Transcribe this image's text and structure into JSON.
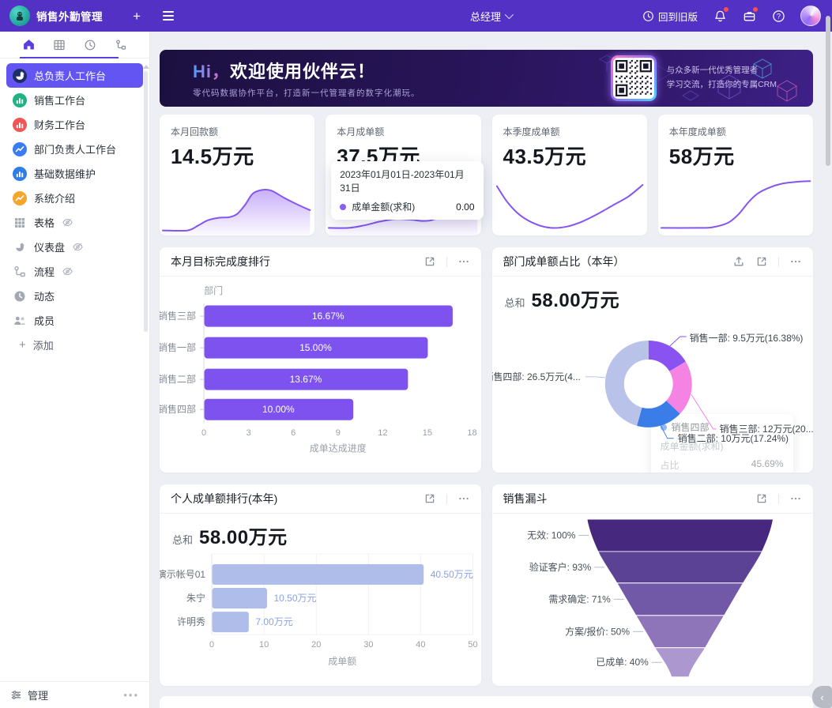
{
  "header": {
    "app_title": "销售外勤管理",
    "role_selector": "总经理",
    "back_to_old_label": "回到旧版"
  },
  "sidebar": {
    "items": [
      {
        "label": "总负责人工作台",
        "icon": "pie-dark",
        "active": true
      },
      {
        "label": "销售工作台",
        "icon": "bars-green"
      },
      {
        "label": "财务工作台",
        "icon": "bars-red"
      },
      {
        "label": "部门负责人工作台",
        "icon": "line-blue"
      },
      {
        "label": "基础数据维护",
        "icon": "bars-blue"
      },
      {
        "label": "系统介绍",
        "icon": "line-orange"
      },
      {
        "label": "表格",
        "icon": "grid-gray",
        "hidden": true
      },
      {
        "label": "仪表盘",
        "icon": "pie-gray",
        "hidden": true
      },
      {
        "label": "流程",
        "icon": "flow-gray",
        "hidden": true
      },
      {
        "label": "动态",
        "icon": "clock-gray"
      },
      {
        "label": "成员",
        "icon": "people-gray"
      }
    ],
    "add_label": "添加",
    "manage_label": "管理"
  },
  "banner": {
    "greeting": "Hi，",
    "title": "欢迎使用伙伴云！",
    "subtitle": "零代码数据协作平台，打造新一代管理者的数字化潮玩。",
    "qr_caption_line1": "与众多新一代优秀管理者",
    "qr_caption_line2": "学习交流，打造你的专属CRM"
  },
  "stat_cards": [
    {
      "label": "本月回款额",
      "value": "14.5万元",
      "spark_type": "area",
      "spark": [
        [
          2,
          92
        ],
        [
          18,
          92
        ],
        [
          25,
          84
        ],
        [
          31,
          76
        ],
        [
          38,
          72
        ],
        [
          45,
          71
        ],
        [
          50,
          66
        ],
        [
          55,
          52
        ],
        [
          60,
          34
        ],
        [
          66,
          28
        ],
        [
          72,
          29
        ],
        [
          80,
          40
        ],
        [
          88,
          50
        ],
        [
          97,
          60
        ]
      ]
    },
    {
      "label": "本月成单额",
      "value": "37.5万元",
      "spark_type": "area",
      "spark": [
        [
          2,
          88
        ],
        [
          15,
          88
        ],
        [
          25,
          84
        ],
        [
          35,
          78
        ],
        [
          45,
          74
        ],
        [
          55,
          75
        ],
        [
          62,
          77
        ],
        [
          68,
          76
        ],
        [
          74,
          70
        ],
        [
          80,
          60
        ],
        [
          85,
          46
        ],
        [
          90,
          32
        ],
        [
          95,
          16
        ],
        [
          98,
          6
        ]
      ],
      "tooltip": {
        "date_range": "2023年01月01日-2023年01月31日",
        "series": "成单金额(求和)",
        "value": "0.00"
      }
    },
    {
      "label": "本季度成单额",
      "value": "43.5万元",
      "spark_type": "line",
      "spark": [
        [
          3,
          22
        ],
        [
          10,
          48
        ],
        [
          18,
          68
        ],
        [
          28,
          82
        ],
        [
          38,
          88
        ],
        [
          48,
          86
        ],
        [
          58,
          78
        ],
        [
          68,
          66
        ],
        [
          78,
          52
        ],
        [
          88,
          38
        ],
        [
          97,
          20
        ]
      ]
    },
    {
      "label": "本年度成单额",
      "value": "58万元",
      "spark_type": "line",
      "spark": [
        [
          2,
          88
        ],
        [
          25,
          88
        ],
        [
          35,
          87
        ],
        [
          45,
          80
        ],
        [
          52,
          66
        ],
        [
          58,
          48
        ],
        [
          64,
          34
        ],
        [
          72,
          24
        ],
        [
          80,
          18
        ],
        [
          90,
          15
        ],
        [
          98,
          14
        ]
      ]
    }
  ],
  "chart_data": [
    {
      "type": "bar",
      "orientation": "horizontal",
      "title": "本月目标完成度排行",
      "header_icons": [
        "expand",
        "more"
      ],
      "categories": [
        "销售三部",
        "销售一部",
        "销售二部",
        "销售四部"
      ],
      "values": [
        16.67,
        15.0,
        13.67,
        10.0
      ],
      "bar_labels": [
        "16.67%",
        "15.00%",
        "13.67%",
        "10.00%"
      ],
      "xlabel": "成单达成进度",
      "ylabel": "部门",
      "xlim": [
        0,
        18
      ],
      "x_ticks": [
        0,
        3,
        6,
        9,
        12,
        15,
        18
      ],
      "bar_color": "#7d52ee",
      "bar_label_color": "#ffffff",
      "grid": false
    },
    {
      "type": "pie",
      "donut": true,
      "title": "部门成单额占比（本年）",
      "header_icons": [
        "export",
        "expand",
        "more"
      ],
      "total_prefix": "总和",
      "total_value": "58.00万元",
      "slices": [
        {
          "name": "销售一部",
          "value_label": "9.5万元",
          "pct": 16.38,
          "display": "销售一部: 9.5万元(16.38%)",
          "color": "#8a52f0"
        },
        {
          "name": "销售三部",
          "value_label": "12万元",
          "pct": 20.69,
          "display": "销售三部: 12万元(20....",
          "color": "#f583e3"
        },
        {
          "name": "销售二部",
          "value_label": "10万元",
          "pct": 17.24,
          "display": "销售二部: 10万元(17.24%)",
          "color": "#3a7de8"
        },
        {
          "name": "销售四部",
          "value_label": "26.5万元",
          "pct": 45.69,
          "display": "销售四部: 26.5万元(4...",
          "color": "#b9c3ea"
        }
      ],
      "hover_tooltip": {
        "title": "销售四部",
        "rows": [
          {
            "label": "成单金额(求和)",
            "value": ""
          },
          {
            "label": "占比",
            "value": "45.69%"
          }
        ]
      }
    },
    {
      "type": "bar",
      "orientation": "horizontal",
      "title": "个人成单额排行(本年)",
      "header_icons": [
        "expand",
        "more"
      ],
      "total_prefix": "总和",
      "total_value": "58.00万元",
      "categories": [
        "演示帐号01",
        "朱宁",
        "许明秀"
      ],
      "values": [
        40.5,
        10.5,
        7.0
      ],
      "bar_labels": [
        "40.50万元",
        "10.50万元",
        "7.00万元"
      ],
      "xlabel": "成单额",
      "xlim": [
        0,
        50
      ],
      "x_ticks": [
        0,
        10,
        20,
        30,
        40,
        50
      ],
      "bar_color": "#aebde9",
      "bar_label_color": "#8aa2e2",
      "grid": true
    },
    {
      "type": "funnel",
      "title": "销售漏斗",
      "header_icons": [
        "expand",
        "more"
      ],
      "stages": [
        {
          "label": "无效",
          "pct": 100,
          "display": "无效: 100%",
          "color": "#46287e"
        },
        {
          "label": "验证客户",
          "pct": 93,
          "display": "验证客户: 93%",
          "color": "#5b4295"
        },
        {
          "label": "需求确定",
          "pct": 71,
          "display": "需求确定: 71%",
          "color": "#7159a7"
        },
        {
          "label": "方案/报价",
          "pct": 50,
          "display": "方案/报价: 50%",
          "color": "#8e74b8"
        },
        {
          "label": "已成单",
          "pct": 40,
          "display": "已成单: 40%",
          "color": "#ac97ce"
        }
      ]
    }
  ],
  "page": {
    "collapse_glyph": "‹"
  }
}
